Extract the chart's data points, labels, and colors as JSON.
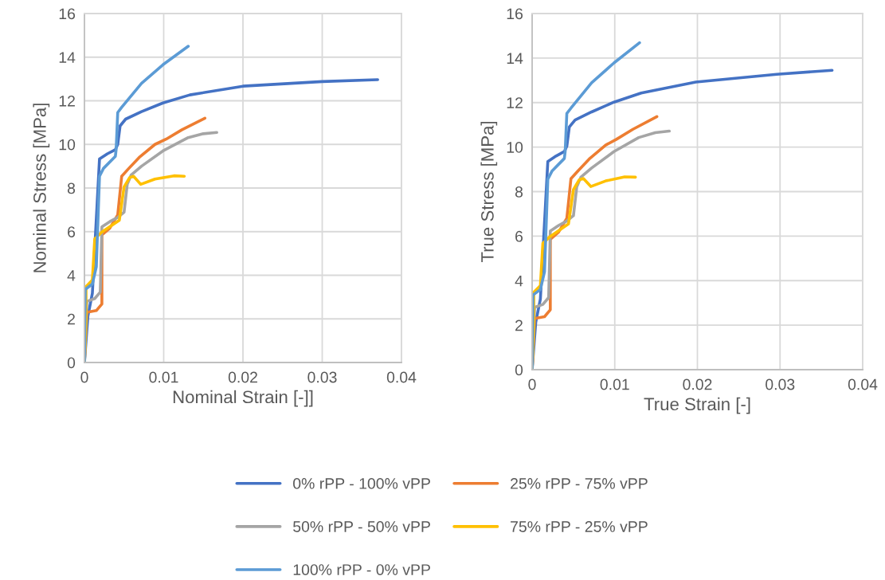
{
  "chart_data": [
    {
      "type": "line",
      "xlabel": "Nominal Strain [-]]",
      "ylabel": "Nominal Stress [MPa]",
      "xlim": [
        0,
        0.04
      ],
      "xticks": [
        0,
        0.01,
        0.02,
        0.03,
        0.04
      ],
      "ylim": [
        0,
        16
      ],
      "yticks": [
        0,
        2,
        4,
        6,
        8,
        10,
        12,
        14,
        16
      ],
      "grid": true,
      "legend": "bottom",
      "line_style": "solid",
      "marker": "none",
      "series": [
        {
          "name": "0% rPP - 100% vPP",
          "color": "#4472c4",
          "x": [
            0,
            0.00044,
            0.001,
            0.0019,
            0.0029,
            0.0039,
            0.0042,
            0.0045,
            0.0052,
            0.0072,
            0.0099,
            0.0133,
            0.02,
            0.03,
            0.037
          ],
          "values": [
            0,
            2.13,
            3.17,
            9.33,
            9.57,
            9.76,
            10.0,
            10.85,
            11.16,
            11.5,
            11.9,
            12.27,
            12.67,
            12.88,
            12.97
          ]
        },
        {
          "name": "25% rPP - 75% vPP",
          "color": "#ed7d31",
          "x": [
            0,
            0.0003,
            0.0015,
            0.0022,
            0.0022,
            0.0032,
            0.0042,
            0.0047,
            0.0056,
            0.0069,
            0.0089,
            0.0103,
            0.0123,
            0.0152
          ],
          "values": [
            0,
            2.3,
            2.38,
            2.68,
            5.85,
            6.16,
            6.77,
            8.54,
            8.9,
            9.4,
            10.0,
            10.24,
            10.67,
            11.2
          ]
        },
        {
          "name": "50% rPP - 50% vPP",
          "color": "#a5a5a5",
          "x": [
            0,
            0.0003,
            0.0013,
            0.002,
            0.0022,
            0.0032,
            0.0042,
            0.005,
            0.0054,
            0.0059,
            0.0072,
            0.0099,
            0.013,
            0.015,
            0.0167
          ],
          "values": [
            0,
            2.8,
            2.93,
            3.23,
            6.22,
            6.46,
            6.65,
            6.89,
            8.17,
            8.6,
            9.0,
            9.7,
            10.3,
            10.49,
            10.55
          ]
        },
        {
          "name": "75% rPP - 25% vPP",
          "color": "#ffc000",
          "x": [
            0,
            0.0002,
            0.0002,
            0.001,
            0.0013,
            0.0022,
            0.0044,
            0.005,
            0.0057,
            0.0062,
            0.0071,
            0.0089,
            0.0113,
            0.0126
          ],
          "values": [
            0,
            1.95,
            3.48,
            3.78,
            5.67,
            5.98,
            6.52,
            8.05,
            8.48,
            8.54,
            8.17,
            8.41,
            8.56,
            8.54
          ]
        },
        {
          "name": "100% rPP - 0% vPP",
          "color": "#5b9bd5",
          "x": [
            0,
            0.0001,
            0.001,
            0.0015,
            0.0019,
            0.0024,
            0.0039,
            0.004,
            0.0042,
            0.0047,
            0.0072,
            0.0099,
            0.0131
          ],
          "values": [
            0,
            3.35,
            3.6,
            4.39,
            8.54,
            8.9,
            9.45,
            9.76,
            11.46,
            11.7,
            12.8,
            13.65,
            14.5
          ]
        }
      ]
    },
    {
      "type": "line",
      "xlabel": "True Strain [-]",
      "ylabel": "True Stress [MPa]",
      "xlim": [
        0,
        0.04
      ],
      "xticks": [
        0,
        0.01,
        0.02,
        0.03,
        0.04
      ],
      "ylim": [
        0,
        16
      ],
      "yticks": [
        0,
        2,
        4,
        6,
        8,
        10,
        12,
        14,
        16
      ],
      "grid": true,
      "legend": "bottom",
      "line_style": "solid",
      "marker": "none",
      "series": [
        {
          "name": "0% rPP - 100% vPP",
          "color": "#4472c4",
          "x": [
            0,
            0.00044,
            0.001,
            0.0019,
            0.0029,
            0.0039,
            0.0042,
            0.0045,
            0.0052,
            0.0072,
            0.0099,
            0.0132,
            0.0198,
            0.0296,
            0.0363
          ],
          "values": [
            0,
            2.13,
            3.17,
            9.35,
            9.6,
            9.8,
            10.04,
            10.9,
            11.22,
            11.58,
            12.02,
            12.43,
            12.92,
            13.27,
            13.45
          ]
        },
        {
          "name": "25% rPP - 75% vPP",
          "color": "#ed7d31",
          "x": [
            0,
            0.0003,
            0.0015,
            0.0022,
            0.0022,
            0.0032,
            0.0042,
            0.0047,
            0.0056,
            0.0069,
            0.0089,
            0.0102,
            0.0122,
            0.0151
          ],
          "values": [
            0,
            2.3,
            2.38,
            2.69,
            5.86,
            6.18,
            6.8,
            8.58,
            8.95,
            9.46,
            10.09,
            10.35,
            10.8,
            11.37
          ]
        },
        {
          "name": "50% rPP - 50% vPP",
          "color": "#a5a5a5",
          "x": [
            0,
            0.0003,
            0.0013,
            0.002,
            0.0022,
            0.0032,
            0.0042,
            0.005,
            0.0054,
            0.0059,
            0.0072,
            0.0099,
            0.0129,
            0.0149,
            0.0166
          ],
          "values": [
            0,
            2.8,
            2.93,
            3.24,
            6.23,
            6.48,
            6.68,
            6.92,
            8.21,
            8.65,
            9.06,
            9.8,
            10.43,
            10.65,
            10.72
          ]
        },
        {
          "name": "75% rPP - 25% vPP",
          "color": "#ffc000",
          "x": [
            0,
            0.0002,
            0.0002,
            0.001,
            0.0013,
            0.0022,
            0.0044,
            0.005,
            0.0057,
            0.0062,
            0.0071,
            0.0089,
            0.0112,
            0.0125
          ],
          "values": [
            0,
            1.95,
            3.48,
            3.78,
            5.68,
            5.99,
            6.55,
            8.09,
            8.53,
            8.59,
            8.23,
            8.48,
            8.66,
            8.65
          ]
        },
        {
          "name": "100% rPP - 0% vPP",
          "color": "#5b9bd5",
          "x": [
            0,
            0.0001,
            0.001,
            0.0015,
            0.0019,
            0.0024,
            0.0039,
            0.004,
            0.0042,
            0.0047,
            0.0072,
            0.0099,
            0.013
          ],
          "values": [
            0,
            3.35,
            3.6,
            4.4,
            8.56,
            8.92,
            9.49,
            9.8,
            11.51,
            11.75,
            12.89,
            13.78,
            14.69
          ]
        }
      ]
    }
  ]
}
